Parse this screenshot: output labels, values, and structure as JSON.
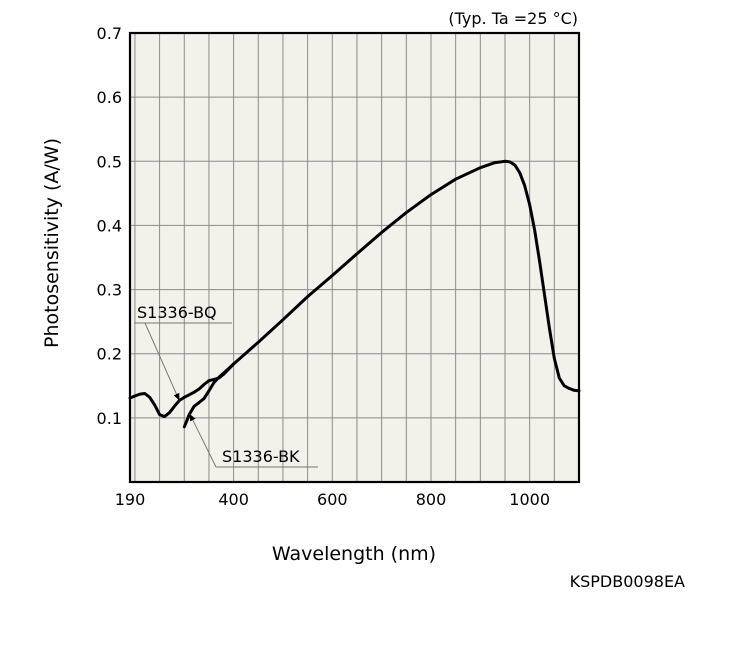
{
  "chart_data": {
    "type": "line",
    "title": "",
    "condition_note": "(Typ. Ta =25 °C)",
    "xlabel": "Wavelength (nm)",
    "ylabel": "Photosensitivity (A/W)",
    "xlim": [
      190,
      1100
    ],
    "ylim": [
      0,
      0.7
    ],
    "x_ticks": [
      190,
      400,
      600,
      800,
      1000
    ],
    "y_ticks": [
      0.1,
      0.2,
      0.3,
      0.4,
      0.5,
      0.6,
      0.7
    ],
    "grid": true,
    "legend": "none",
    "series": [
      {
        "name": "S1336-BQ",
        "x": [
          190,
          200,
          210,
          220,
          230,
          240,
          250,
          260,
          270,
          280,
          290,
          300,
          310,
          320,
          330,
          340,
          350,
          360,
          370,
          380,
          390,
          400,
          450,
          500,
          550,
          600,
          650,
          700,
          750,
          800,
          850,
          900,
          930,
          950,
          960,
          970,
          980,
          990,
          1000,
          1010,
          1020,
          1030,
          1040,
          1050,
          1060,
          1070,
          1080,
          1090,
          1100
        ],
        "y": [
          0.131,
          0.134,
          0.137,
          0.138,
          0.132,
          0.12,
          0.105,
          0.102,
          0.108,
          0.118,
          0.127,
          0.132,
          0.136,
          0.14,
          0.145,
          0.152,
          0.158,
          0.16,
          0.162,
          0.168,
          0.176,
          0.184,
          0.218,
          0.253,
          0.289,
          0.322,
          0.356,
          0.389,
          0.42,
          0.448,
          0.472,
          0.49,
          0.498,
          0.5,
          0.499,
          0.494,
          0.482,
          0.462,
          0.432,
          0.393,
          0.345,
          0.292,
          0.24,
          0.193,
          0.162,
          0.15,
          0.146,
          0.143,
          0.142
        ]
      },
      {
        "name": "S1336-BK",
        "x": [
          300,
          305,
          310,
          320,
          330,
          340,
          350,
          360,
          370,
          380,
          390,
          400
        ],
        "y": [
          0.086,
          0.095,
          0.105,
          0.118,
          0.124,
          0.13,
          0.142,
          0.155,
          0.163,
          0.17,
          0.177,
          0.184
        ]
      }
    ],
    "annotations": [
      {
        "text": "S1336-BQ",
        "series": "S1336-BQ",
        "at_x": 290
      },
      {
        "text": "S1336-BK",
        "series": "S1336-BK",
        "at_x": 311
      }
    ]
  },
  "figure_code": "KSPDB0098EA"
}
